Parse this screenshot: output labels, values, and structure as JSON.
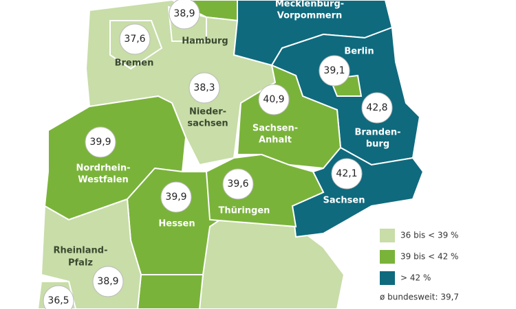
{
  "regions": [
    {
      "label_lines": [
        "Hamburg"
      ],
      "value": "38,9",
      "color": "#c8dda8"
    },
    {
      "label_lines": [
        "Bremen"
      ],
      "value": "37,6",
      "color": "#c8dda8"
    },
    {
      "label_lines": [
        "Mecklenburg-",
        "Vorpommern"
      ],
      "color": "#0f6a7e"
    },
    {
      "label_lines": [
        "Berlin"
      ],
      "value": "39,1",
      "color": "#7ab33a"
    },
    {
      "label_lines": [
        "Nieder-",
        "sachsen"
      ],
      "value": "38,3",
      "color": "#c8dda8"
    },
    {
      "label_lines": [
        "Sachsen-",
        "Anhalt"
      ],
      "value": "40,9",
      "color": "#7ab33a"
    },
    {
      "label_lines": [
        "Branden-",
        "burg"
      ],
      "value": "42,8",
      "color": "#0f6a7e"
    },
    {
      "label_lines": [
        "Nordrhein-",
        "Westfalen"
      ],
      "value": "39,9",
      "color": "#7ab33a"
    },
    {
      "label_lines": [
        "Hessen"
      ],
      "value": "39,9",
      "color": "#7ab33a"
    },
    {
      "label_lines": [
        "Thüringen"
      ],
      "value": "39,6",
      "color": "#7ab33a"
    },
    {
      "label_lines": [
        "Sachsen"
      ],
      "value": "42,1",
      "color": "#0f6a7e"
    },
    {
      "label_lines": [
        "Rheinland-",
        "Pfalz"
      ],
      "value": "38,9",
      "color": "#c8dda8"
    },
    {
      "value": "36,5",
      "color": "#c8dda8"
    }
  ],
  "legend": [
    {
      "label": "36 bis < 39 %",
      "color": "#c8dda8"
    },
    {
      "label": "39 bis < 42 %",
      "color": "#7ab33a"
    },
    {
      "label": "> 42 %",
      "color": "#0f6a7e"
    }
  ],
  "average": "ø bundesweit: 39,7"
}
